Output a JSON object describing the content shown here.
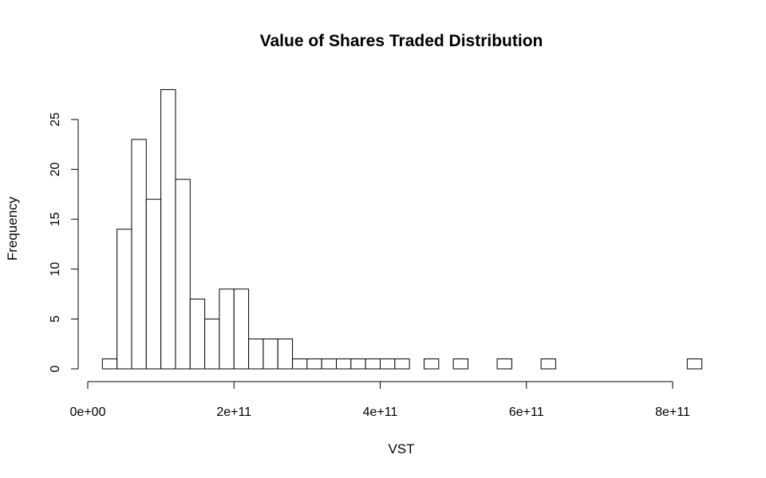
{
  "chart_data": {
    "type": "bar",
    "title": "Value of Shares Traded Distribution",
    "xlabel": "VST",
    "ylabel": "Frequency",
    "bin_width": 20000000000,
    "bins_start": [
      20000000000,
      40000000000,
      60000000000,
      80000000000,
      100000000000,
      120000000000,
      140000000000,
      160000000000,
      180000000000,
      200000000000,
      220000000000,
      240000000000,
      260000000000,
      280000000000,
      300000000000,
      320000000000,
      340000000000,
      360000000000,
      380000000000,
      400000000000,
      420000000000,
      440000000000,
      460000000000,
      480000000000,
      500000000000,
      520000000000,
      540000000000,
      560000000000,
      580000000000,
      600000000000,
      620000000000,
      640000000000,
      660000000000,
      680000000000,
      700000000000,
      720000000000,
      740000000000,
      760000000000,
      780000000000,
      800000000000,
      820000000000
    ],
    "values": [
      1,
      14,
      23,
      17,
      28,
      19,
      7,
      5,
      8,
      8,
      3,
      3,
      3,
      1,
      1,
      1,
      1,
      1,
      1,
      1,
      1,
      0,
      1,
      0,
      1,
      0,
      0,
      1,
      0,
      0,
      1,
      0,
      0,
      0,
      0,
      0,
      0,
      0,
      0,
      0,
      1
    ],
    "xlim": [
      0,
      840000000000
    ],
    "ylim": [
      0,
      28
    ],
    "xticks": [
      0,
      200000000000,
      400000000000,
      600000000000,
      800000000000
    ],
    "xtick_labels": [
      "0e+00",
      "2e+11",
      "4e+11",
      "6e+11",
      "8e+11"
    ],
    "yticks": [
      0,
      5,
      10,
      15,
      20,
      25
    ],
    "ytick_labels": [
      "0",
      "5",
      "10",
      "15",
      "20",
      "25"
    ],
    "grid": false
  }
}
